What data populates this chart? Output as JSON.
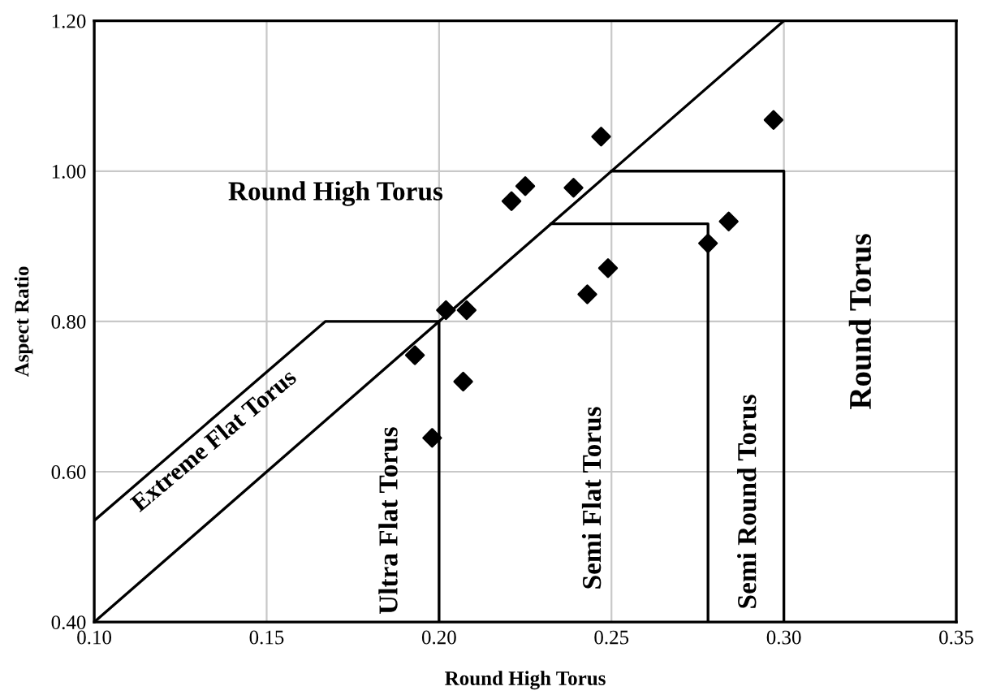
{
  "chart_data": {
    "type": "scatter",
    "xlabel": "Round High Torus",
    "ylabel": "Aspect Ratio",
    "xlim": [
      0.1,
      0.35
    ],
    "ylim": [
      0.4,
      1.2
    ],
    "xticks": [
      {
        "value": 0.1,
        "label": "0.10"
      },
      {
        "value": 0.15,
        "label": "0.15"
      },
      {
        "value": 0.2,
        "label": "0.20"
      },
      {
        "value": 0.25,
        "label": "0.25"
      },
      {
        "value": 0.3,
        "label": "0.30"
      },
      {
        "value": 0.35,
        "label": "0.35"
      }
    ],
    "yticks": [
      {
        "value": 0.4,
        "label": "0.40"
      },
      {
        "value": 0.6,
        "label": "0.60"
      },
      {
        "value": 0.8,
        "label": "0.80"
      },
      {
        "value": 1.0,
        "label": "1.00"
      },
      {
        "value": 1.2,
        "label": "1.20"
      }
    ],
    "grid": true,
    "series": [
      {
        "marker": "diamond",
        "color": "#000000",
        "x": [
          0.193,
          0.198,
          0.202,
          0.208,
          0.207,
          0.221,
          0.225,
          0.239,
          0.247,
          0.243,
          0.249,
          0.278,
          0.284,
          0.297
        ],
        "values": [
          0.755,
          0.645,
          0.815,
          0.815,
          0.72,
          0.96,
          0.98,
          0.978,
          1.046,
          0.836,
          0.871,
          0.904,
          0.933,
          1.068
        ]
      },
      {
        "type": "line",
        "color": "#000000",
        "x": [
          0.1,
          0.3
        ],
        "values": [
          0.4,
          1.2
        ]
      },
      {
        "type": "line",
        "color": "#000000",
        "x": [
          0.1,
          0.167,
          0.2,
          0.2
        ],
        "values": [
          0.535,
          0.8,
          0.8,
          0.4
        ]
      },
      {
        "type": "line",
        "color": "#000000",
        "x": [
          0.2325,
          0.278,
          0.278
        ],
        "values": [
          0.93,
          0.93,
          0.4
        ]
      },
      {
        "type": "line",
        "color": "#000000",
        "x": [
          0.25,
          0.3,
          0.3
        ],
        "values": [
          1.0,
          1.0,
          0.4
        ]
      }
    ],
    "annotations": [
      "Round High Torus",
      "Extreme Flat Torus",
      "Ultra Flat Torus",
      "Semi Flat Torus",
      "Semi Round Torus",
      "Round Torus"
    ]
  }
}
